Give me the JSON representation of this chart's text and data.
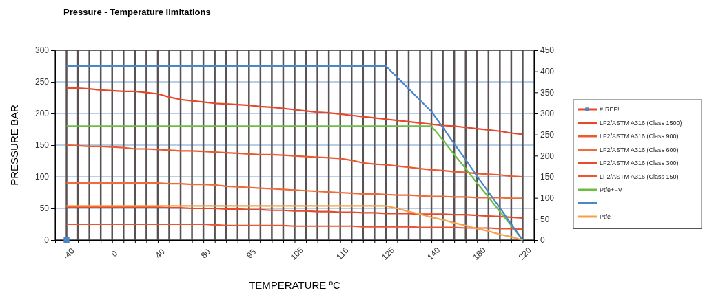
{
  "chart_data": {
    "type": "line",
    "title": "Pressure - Temperature limitations",
    "xlabel": "TEMPERATURE ºC",
    "ylabel": "PRESSURE BAR",
    "categories": [
      "-40",
      null,
      null,
      null,
      "0",
      null,
      null,
      null,
      "40",
      null,
      null,
      null,
      "80",
      null,
      null,
      null,
      "95",
      null,
      null,
      null,
      "105",
      null,
      null,
      null,
      "115",
      null,
      null,
      null,
      "125",
      null,
      null,
      null,
      "140",
      null,
      null,
      null,
      "180",
      null,
      null,
      null,
      "220"
    ],
    "ylim": [
      0,
      300
    ],
    "yticks": [
      0,
      50,
      100,
      150,
      200,
      250,
      300
    ],
    "y2lim": [
      0,
      450
    ],
    "y2ticks": [
      0,
      50,
      100,
      150,
      200,
      250,
      300,
      350,
      400,
      450
    ],
    "grid": true,
    "legend": "right",
    "line_style": "solid",
    "series": [
      {
        "name": "#¡REF!",
        "type": "scatter",
        "marker": "square",
        "color": "#4a86c8",
        "values": [
          0,
          null,
          null,
          null,
          null,
          null,
          null,
          null,
          null,
          null,
          null,
          null,
          null,
          null,
          null,
          null,
          null,
          null,
          null,
          null,
          null,
          null,
          null,
          null,
          null,
          null,
          null,
          null,
          null,
          null,
          null,
          null,
          null,
          null,
          null,
          null,
          null,
          null,
          null,
          null,
          null
        ]
      },
      {
        "name": "LF2/ASTM A316 (Class 1500)",
        "color": "#e8472a",
        "values": [
          240,
          240,
          239,
          237,
          236,
          235,
          235,
          233,
          231,
          226,
          222,
          220,
          218,
          216,
          215,
          214,
          213,
          211,
          210,
          208,
          206,
          204,
          202,
          201,
          199,
          197,
          195,
          193,
          191,
          189,
          187,
          185,
          183,
          181,
          180,
          178,
          176,
          174,
          172,
          169,
          167
        ]
      },
      {
        "name": "LF2/ASTM A316 (Class 900)",
        "color": "#ee5a30",
        "values": [
          150,
          149,
          148,
          148,
          147,
          146,
          144,
          144,
          143,
          142,
          141,
          141,
          140,
          139,
          138,
          137,
          136,
          135,
          135,
          134,
          133,
          132,
          131,
          130,
          129,
          126,
          122,
          120,
          119,
          117,
          115,
          113,
          111,
          110,
          108,
          107,
          105,
          104,
          103,
          101,
          100
        ]
      },
      {
        "name": "LF2/ASTM A316 (Class 600)",
        "color": "#f06c38",
        "values": [
          90,
          90,
          90,
          90,
          90,
          90,
          90,
          90,
          90,
          89,
          89,
          88,
          88,
          87,
          85,
          84,
          83,
          82,
          81,
          80,
          79,
          78,
          77,
          76,
          75,
          74,
          73,
          73,
          72,
          71,
          71,
          70,
          69,
          69,
          68,
          68,
          67,
          67,
          67,
          66,
          66
        ]
      },
      {
        "name": "LF2/ASTM A316 (Class 300)",
        "color": "#e84a2c",
        "values": [
          52,
          52,
          52,
          52,
          52,
          52,
          52,
          52,
          52,
          51,
          51,
          50,
          50,
          50,
          49,
          49,
          48,
          48,
          47,
          47,
          46,
          46,
          45,
          45,
          44,
          44,
          43,
          43,
          42,
          42,
          42,
          41,
          41,
          41,
          40,
          40,
          39,
          38,
          37,
          36,
          35
        ]
      },
      {
        "name": "LF2/ASTM A316 (Class 150)",
        "color": "#ec5432",
        "values": [
          25,
          25,
          25,
          25,
          25,
          25,
          25,
          25,
          25,
          25,
          25,
          25,
          25,
          24,
          23,
          23,
          23,
          23,
          23,
          23,
          22,
          22,
          22,
          22,
          22,
          22,
          21,
          21,
          21,
          21,
          21,
          20,
          20,
          20,
          20,
          19,
          19,
          19,
          18,
          18,
          17
        ]
      },
      {
        "name": "Ptfe+FV",
        "color": "#6cbd45",
        "values": [
          180,
          180,
          180,
          180,
          180,
          180,
          180,
          180,
          180,
          180,
          180,
          180,
          180,
          180,
          180,
          180,
          180,
          180,
          180,
          180,
          180,
          180,
          180,
          180,
          180,
          180,
          180,
          180,
          180,
          180,
          180,
          180,
          180,
          158,
          135,
          113,
          90,
          68,
          45,
          23,
          0
        ]
      },
      {
        "color": "#4a86c8",
        "values": [
          275,
          275,
          275,
          275,
          275,
          275,
          275,
          275,
          275,
          275,
          275,
          275,
          275,
          275,
          275,
          275,
          275,
          275,
          275,
          275,
          275,
          275,
          275,
          275,
          275,
          275,
          275,
          275,
          275,
          257,
          239,
          221,
          203,
          178,
          152,
          127,
          101,
          76,
          51,
          25,
          0
        ]
      },
      {
        "name": "Ptfe",
        "color": "#f5a04a",
        "values": [
          54,
          54,
          54,
          54,
          54,
          54,
          54,
          54,
          54,
          54,
          54,
          54,
          54,
          54,
          54,
          54,
          54,
          54,
          54,
          54,
          54,
          54,
          54,
          54,
          54,
          54,
          54,
          54,
          54,
          50,
          45,
          41,
          36,
          32,
          27,
          23,
          18,
          14,
          9,
          5,
          0
        ]
      }
    ]
  }
}
